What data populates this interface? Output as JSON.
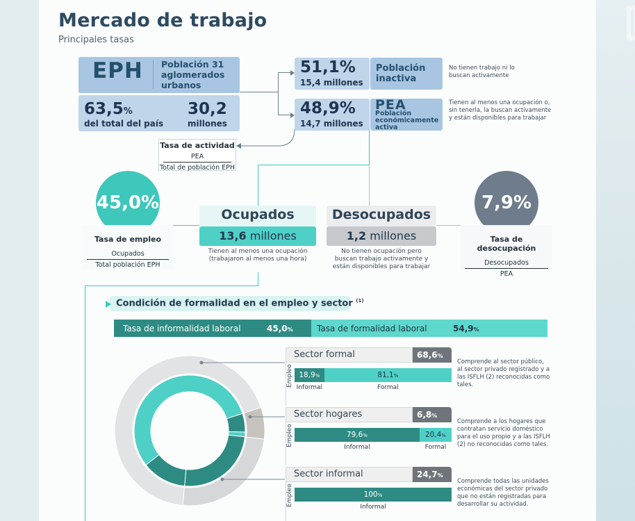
{
  "title": "Mercado de trabajo",
  "subtitle": "Principales tasas",
  "eph": {
    "logo": "EPH",
    "desc": "Población 31 aglomerados urbanos",
    "pct": "63,5",
    "pct_unit": "%",
    "pct_label": "del total del país",
    "millions": "30,2",
    "millions_label": "millones"
  },
  "inactiva": {
    "pct": "51,1%",
    "millions": "15,4 millones",
    "label": "Población inactiva",
    "note": "No tienen trabajo ni lo buscan activamente"
  },
  "pea": {
    "pct": "48,9%",
    "millions": "14,7 millones",
    "label": "PEA",
    "sublabel": "Población económicamente activa",
    "note": "Tienen al menos una ocupación o, sin tenerla, la buscan activamente y están disponibles para trabajar"
  },
  "tasa_actividad": {
    "title": "Tasa de actividad",
    "num": "PEA",
    "den": "Total de población EPH"
  },
  "empleo": {
    "pct": "45,0%",
    "label": "Tasa de empleo",
    "num": "Ocupados",
    "den": "Total población EPH"
  },
  "ocupados": {
    "title": "Ocupados",
    "value": "13,6",
    "unit": "millones",
    "note": "Tienen al menos una ocupación (trabajaron al menos una hora)"
  },
  "desocupados": {
    "title": "Desocupados",
    "value": "1,2",
    "unit": "millones",
    "note": "No tienen ocupación pero buscan trabajo activamente y están disponibles para trabajar"
  },
  "desocupacion": {
    "pct": "7,9%",
    "label": "Tasa de desocupación",
    "num": "Desocupados",
    "den": "PEA"
  },
  "formalidad": {
    "heading": "Condición de formalidad en el empleo y sector",
    "footnote": "(1)",
    "informal_label": "Tasa de informalidad laboral",
    "informal_value": "45,0",
    "formal_label": "Tasa de formalidad laboral",
    "formal_value": "54,9",
    "pct_sign": "%"
  },
  "sectors": [
    {
      "name": "Sector formal",
      "share": "68,6",
      "emp_label": "Empleo",
      "bars": [
        {
          "value": "18,9",
          "label": "Informal"
        },
        {
          "value": "81,1",
          "label": "Formal"
        }
      ],
      "note": "Comprende al sector público, al sector privado registrado y a las ISFLH (2) reconocidas como tales."
    },
    {
      "name": "Sector hogares",
      "share": "6,8",
      "emp_label": "Empleo",
      "bars": [
        {
          "value": "79,6",
          "label": "Informal"
        },
        {
          "value": "20,4",
          "label": "Formal"
        }
      ],
      "note": "Comprende a los hogares que contratan servicio doméstico para el uso propio y a las ISFLH (2) no reconocidas como tales."
    },
    {
      "name": "Sector informal",
      "share": "24,7",
      "emp_label": "Empleo",
      "bars": [
        {
          "value": "100",
          "label": "Informal"
        }
      ],
      "note": "Comprende todas las unidades económicas del sector privado que no están registradas para desarrollar su actividad."
    }
  ],
  "chart_data": {
    "type": "pie",
    "rings": [
      {
        "name": "Sector",
        "slices": [
          {
            "label": "Sector formal",
            "value": 68.6
          },
          {
            "label": "Sector hogares",
            "value": 6.8
          },
          {
            "label": "Sector informal",
            "value": 24.7
          }
        ]
      },
      {
        "name": "Empleo",
        "slices": [
          {
            "label": "Formal (sector formal)",
            "value": 81.1
          },
          {
            "label": "Informal (sector formal)",
            "value": 18.9
          }
        ]
      }
    ]
  }
}
